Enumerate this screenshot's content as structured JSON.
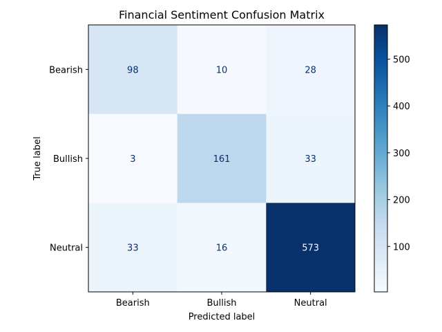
{
  "chart_data": {
    "type": "heatmap",
    "title": "Financial Sentiment Confusion Matrix",
    "xlabel": "Predicted label",
    "ylabel": "True label",
    "x_categories": [
      "Bearish",
      "Bullish",
      "Neutral"
    ],
    "y_categories": [
      "Bearish",
      "Bullish",
      "Neutral"
    ],
    "matrix": [
      [
        98,
        10,
        28
      ],
      [
        3,
        161,
        33
      ],
      [
        33,
        16,
        573
      ]
    ],
    "colormap": "Blues",
    "color_range": [
      3,
      573
    ],
    "colorbar_ticks": [
      100,
      200,
      300,
      400,
      500
    ],
    "colors": {
      "low": "#f7fbff",
      "high": "#08306b",
      "text_dark": "#08306b",
      "text_light": "#f7fbff"
    }
  }
}
